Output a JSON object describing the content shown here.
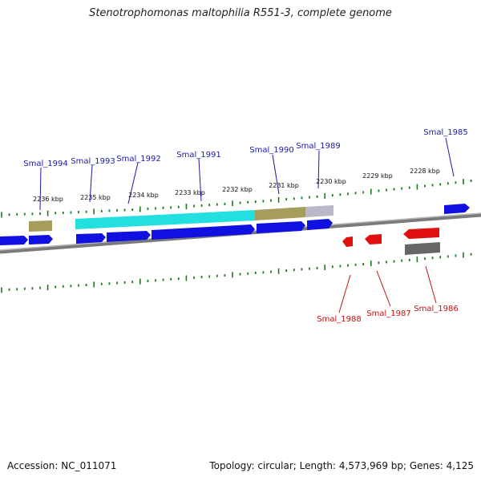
{
  "title": "Stenotrophomonas maltophilia R551-3, complete genome",
  "footer": {
    "accession": "Accession: NC_011071",
    "summary": "Topology: circular; Length: 4,573,969 bp; Genes: 4,125"
  },
  "colors": {
    "forward_gene": "#1010e0",
    "reverse_gene": "#e01010",
    "cyan_feature": "#22e0e0",
    "olive_feature": "#a69c5c",
    "grey_feature": "#b8b8c8",
    "dark_grey_feature": "#666666",
    "backbone": "#7a7a7a",
    "tick": "#1f7a1f",
    "forward_label": "#1a1aa8",
    "reverse_label": "#c41212"
  },
  "scale_labels": [
    "2236 kbp",
    "2235 kbp",
    "2234 kbp",
    "2233 kbp",
    "2232 kbp",
    "2231 kbp",
    "2230 kbp",
    "2229 kbp",
    "2228 kbp"
  ],
  "forward_genes": [
    "Smal_1994",
    "Smal_1993",
    "Smal_1992",
    "Smal_1991",
    "Smal_1990",
    "Smal_1989",
    "Smal_1985"
  ],
  "reverse_genes": [
    "Smal_1988",
    "Smal_1987",
    "Smal_1986"
  ]
}
